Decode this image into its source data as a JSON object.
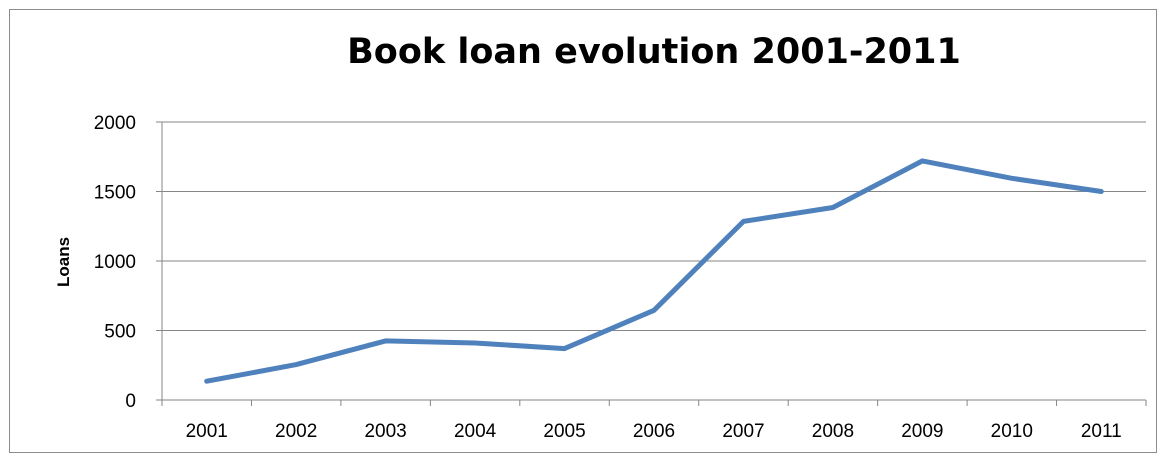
{
  "chart_data": {
    "type": "line",
    "title": "Book loan evolution 2001-2011",
    "xlabel": "",
    "ylabel": "Loans",
    "x": [
      "2001",
      "2002",
      "2003",
      "2004",
      "2005",
      "2006",
      "2007",
      "2008",
      "2009",
      "2010",
      "2011"
    ],
    "series": [
      {
        "values": [
          135,
          255,
          425,
          410,
          370,
          645,
          1285,
          1385,
          1720,
          1595,
          1500
        ]
      }
    ],
    "ylim": [
      0,
      2000
    ],
    "yticks": [
      "0",
      "500",
      "1000",
      "1500",
      "2000"
    ],
    "grid": true,
    "legend": "none",
    "line_color": "#4f81bd",
    "grid_color": "#868686"
  }
}
